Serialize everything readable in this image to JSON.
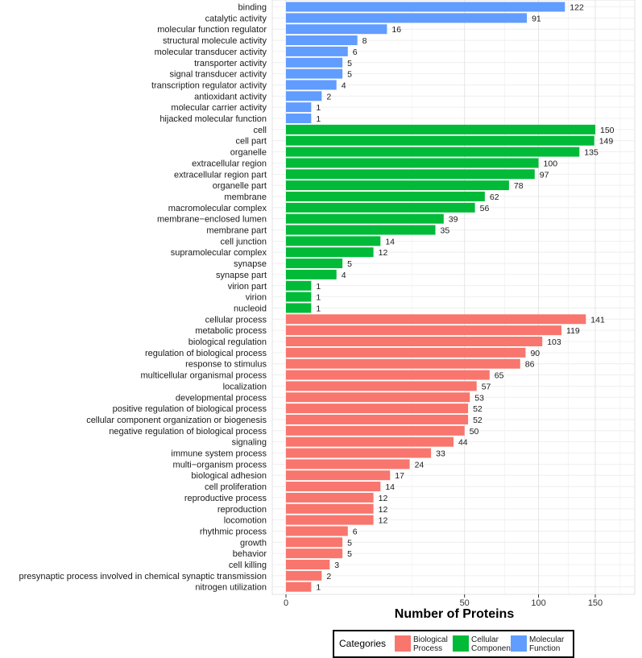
{
  "chart_data": {
    "type": "bar",
    "orientation": "horizontal",
    "title": "",
    "xlabel": "Number of Proteins",
    "ylabel": "",
    "x_scale": "sqrt",
    "xlim": [
      0,
      200
    ],
    "xticks": [
      "0",
      "50",
      "100",
      "150"
    ],
    "xtick_values": [
      0,
      50,
      100,
      150
    ],
    "grid": true,
    "legend_position": "bottom",
    "legend": {
      "title": "Categories",
      "entries": [
        {
          "label": [
            "Biological",
            "Process"
          ],
          "color": "#F8766D"
        },
        {
          "label": [
            "Cellular",
            "Component"
          ],
          "color": "#00BA38"
        },
        {
          "label": [
            "Molecular",
            "Function"
          ],
          "color": "#619CFF"
        }
      ]
    },
    "series": [
      {
        "name": "Molecular Function",
        "color": "#619CFF",
        "categories": [
          "binding",
          "catalytic activity",
          "molecular function regulator",
          "structural molecule activity",
          "molecular transducer activity",
          "transporter activity",
          "signal transducer activity",
          "transcription regulator activity",
          "antioxidant activity",
          "molecular carrier activity",
          "hijacked molecular function"
        ],
        "values": [
          122,
          91,
          16,
          8,
          6,
          5,
          5,
          4,
          2,
          1,
          1
        ]
      },
      {
        "name": "Cellular Component",
        "color": "#00BA38",
        "categories": [
          "cell",
          "cell part",
          "organelle",
          "extracellular region",
          "extracellular region part",
          "organelle part",
          "membrane",
          "macromolecular complex",
          "membrane−enclosed lumen",
          "membrane part",
          "cell junction",
          "supramolecular complex",
          "synapse",
          "synapse part",
          "virion part",
          "virion",
          "nucleoid"
        ],
        "values": [
          150,
          149,
          135,
          100,
          97,
          78,
          62,
          56,
          39,
          35,
          14,
          12,
          5,
          4,
          1,
          1,
          1
        ]
      },
      {
        "name": "Biological Process",
        "color": "#F8766D",
        "categories": [
          "cellular process",
          "metabolic process",
          "biological regulation",
          "regulation of biological process",
          "response to stimulus",
          "multicellular organismal process",
          "localization",
          "developmental process",
          "positive regulation of biological process",
          "cellular component organization or biogenesis",
          "negative regulation of biological process",
          "signaling",
          "immune system process",
          "multi−organism process",
          "biological adhesion",
          "cell proliferation",
          "reproductive process",
          "reproduction",
          "locomotion",
          "rhythmic process",
          "growth",
          "behavior",
          "cell killing",
          "presynaptic process involved in chemical synaptic transmission",
          "nitrogen utilization"
        ],
        "values": [
          141,
          119,
          103,
          90,
          86,
          65,
          57,
          53,
          52,
          52,
          50,
          44,
          33,
          24,
          17,
          14,
          12,
          12,
          12,
          6,
          5,
          5,
          3,
          2,
          1
        ]
      }
    ]
  }
}
